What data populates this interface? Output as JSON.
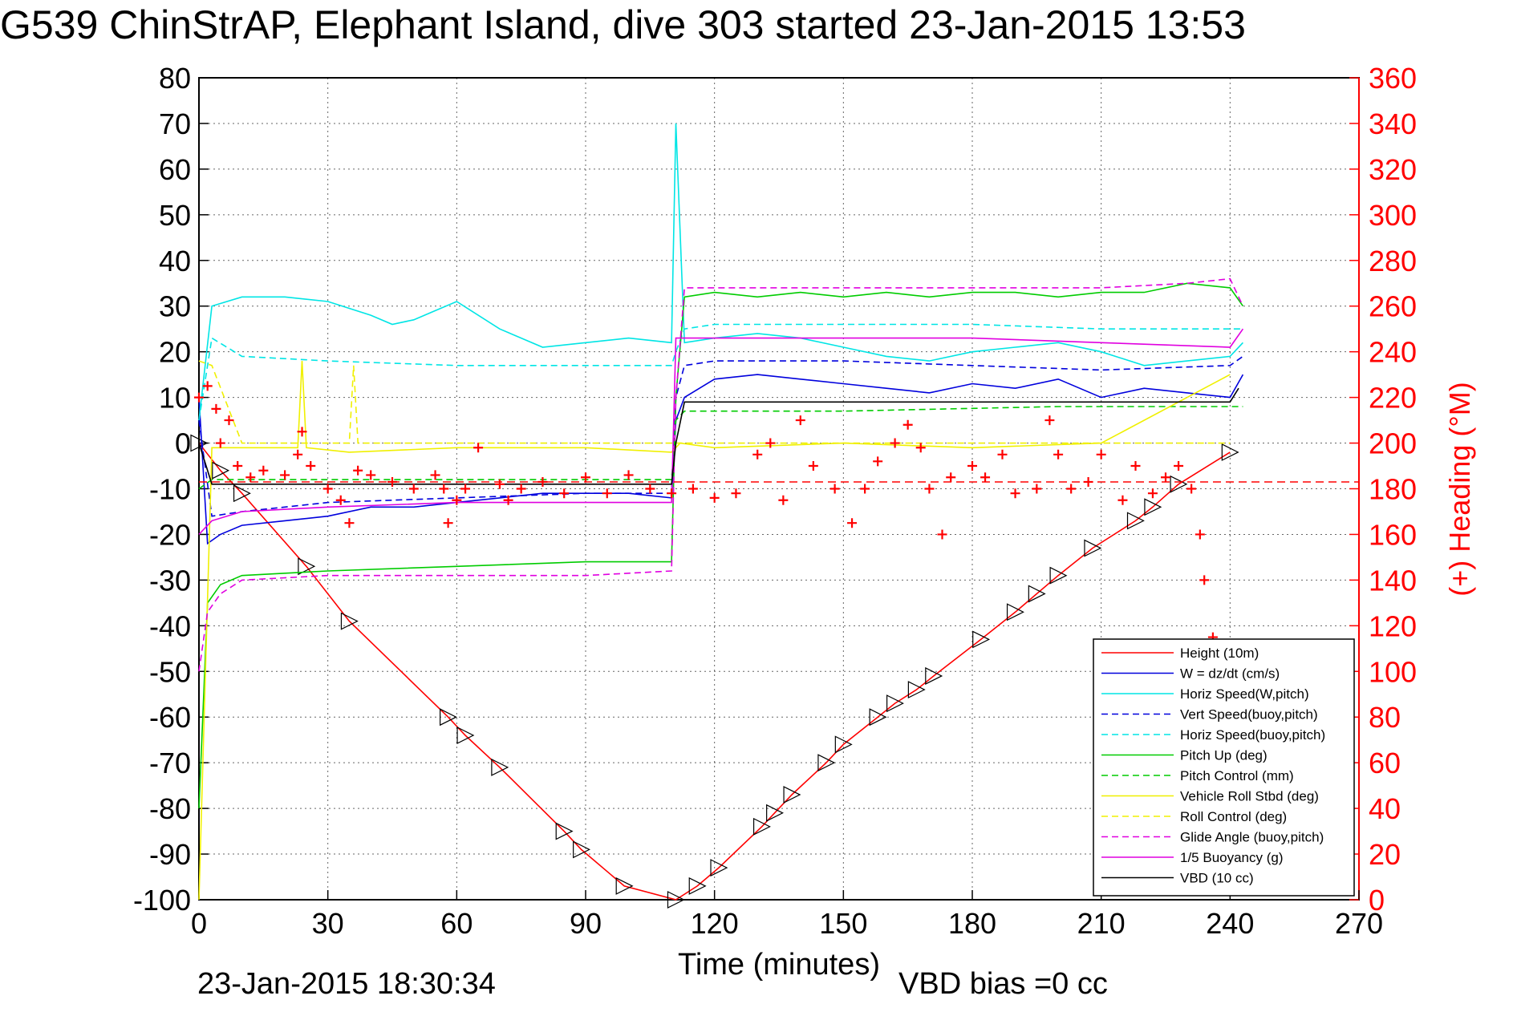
{
  "title": "G539 ChinStrAP, Elephant Island, dive 303 started 23-Jan-2015 13:53",
  "footer_left": "23-Jan-2015 18:30:34",
  "footer_right": "VBD bias =0 cc",
  "chart_data": {
    "type": "line",
    "xlabel": "Time (minutes)",
    "ylabel": "",
    "ylabel_right": "(+) Heading (°M)",
    "xlim": [
      0,
      270
    ],
    "ylim": [
      -100,
      80
    ],
    "ylim_right": [
      0,
      360
    ],
    "xticks": [
      0,
      30,
      60,
      90,
      120,
      150,
      180,
      210,
      240,
      270
    ],
    "yticks": [
      -100,
      -90,
      -80,
      -70,
      -60,
      -50,
      -40,
      -30,
      -20,
      -10,
      0,
      10,
      20,
      30,
      40,
      50,
      60,
      70,
      80
    ],
    "yticks_right": [
      0,
      20,
      40,
      60,
      80,
      100,
      120,
      140,
      160,
      180,
      200,
      220,
      240,
      260,
      280,
      300,
      320,
      340,
      360
    ],
    "grid": true,
    "legend_position": "bottom-right",
    "colors": {
      "right_axis": "#ff0000",
      "red": "#ff0000",
      "blue": "#0000dd",
      "cyan": "#00e5e5",
      "green": "#00cc00",
      "yellow": "#f0f000",
      "magenta": "#e000e0",
      "black": "#000000"
    },
    "series": [
      {
        "name": "Height (10m)",
        "color": "#ff0000",
        "style": "solid",
        "marker": "triangle",
        "x": [
          0,
          5,
          10,
          25,
          35,
          58,
          62,
          70,
          85,
          89,
          99,
          111,
          116,
          121,
          131,
          134,
          138,
          146,
          150,
          158,
          162,
          167,
          171,
          182,
          190,
          195,
          200,
          208,
          218,
          222,
          228,
          240
        ],
        "y": [
          0,
          -6,
          -11,
          -27,
          -39,
          -60,
          -64,
          -71,
          -85,
          -89,
          -97,
          -100,
          -97,
          -93,
          -84,
          -81,
          -77,
          -70,
          -66,
          -60,
          -57,
          -54,
          -51,
          -43,
          -37,
          -33,
          -29,
          -23,
          -17,
          -14,
          -9,
          -2
        ]
      },
      {
        "name": "W = dz/dt (cm/s)",
        "color": "#0000dd",
        "style": "solid",
        "x": [
          0,
          2,
          5,
          10,
          20,
          30,
          40,
          50,
          60,
          70,
          80,
          90,
          100,
          110,
          111,
          113,
          120,
          130,
          140,
          150,
          160,
          170,
          180,
          190,
          200,
          210,
          220,
          230,
          240,
          243
        ],
        "y": [
          10,
          -22,
          -20,
          -18,
          -17,
          -16,
          -14,
          -14,
          -13,
          -12,
          -11,
          -11,
          -11,
          -12,
          5,
          10,
          14,
          15,
          14,
          13,
          12,
          11,
          13,
          12,
          14,
          10,
          12,
          11,
          10,
          15
        ]
      },
      {
        "name": "Horiz Speed(W,pitch)",
        "color": "#00e5e5",
        "style": "solid",
        "x": [
          0,
          3,
          10,
          20,
          30,
          40,
          45,
          50,
          55,
          60,
          70,
          80,
          90,
          100,
          110,
          111,
          113,
          120,
          130,
          140,
          150,
          160,
          170,
          180,
          190,
          200,
          210,
          220,
          230,
          240,
          243
        ],
        "y": [
          5,
          30,
          32,
          32,
          31,
          28,
          26,
          27,
          29,
          31,
          25,
          21,
          22,
          23,
          22,
          70,
          22,
          23,
          24,
          23,
          21,
          19,
          18,
          20,
          21,
          22,
          20,
          17,
          18,
          19,
          22
        ]
      },
      {
        "name": "Vert Speed(buoy,pitch)",
        "color": "#0000dd",
        "style": "dashed",
        "x": [
          0,
          3,
          10,
          30,
          60,
          90,
          110,
          111,
          113,
          120,
          150,
          180,
          210,
          240,
          243
        ],
        "y": [
          5,
          -16,
          -15,
          -13,
          -12,
          -11,
          -11,
          10,
          17,
          18,
          18,
          17,
          16,
          17,
          19
        ]
      },
      {
        "name": "Horiz Speed(buoy,pitch)",
        "color": "#00e5e5",
        "style": "dashed",
        "x": [
          0,
          3,
          10,
          30,
          60,
          90,
          110,
          111,
          113,
          120,
          150,
          180,
          210,
          240,
          243
        ],
        "y": [
          5,
          23,
          19,
          18,
          17,
          17,
          17,
          20,
          25,
          26,
          26,
          26,
          25,
          25,
          25
        ]
      },
      {
        "name": "Pitch Up (deg)",
        "color": "#00cc00",
        "style": "solid",
        "x": [
          0,
          2,
          5,
          10,
          30,
          60,
          90,
          110,
          111,
          113,
          120,
          130,
          140,
          150,
          160,
          170,
          180,
          190,
          200,
          210,
          220,
          230,
          240,
          243
        ],
        "y": [
          -80,
          -35,
          -31,
          -29,
          -28,
          -27,
          -26,
          -26,
          10,
          32,
          33,
          32,
          33,
          32,
          33,
          32,
          33,
          33,
          32,
          33,
          33,
          35,
          34,
          30
        ]
      },
      {
        "name": "Pitch Control (mm)",
        "color": "#00cc00",
        "style": "dashed",
        "x": [
          0,
          3,
          60,
          110,
          111,
          113,
          150,
          200,
          240,
          243
        ],
        "y": [
          -10,
          -8,
          -8,
          -8,
          5,
          7,
          7,
          8,
          8,
          8
        ]
      },
      {
        "name": "Vehicle Roll Stbd (deg)",
        "color": "#f0f000",
        "style": "solid",
        "x": [
          0,
          3,
          10,
          23,
          24,
          25,
          35,
          60,
          90,
          110,
          112,
          120,
          150,
          180,
          210,
          240
        ],
        "y": [
          -100,
          -1,
          -1,
          -1,
          18,
          -1,
          -2,
          -1,
          -1,
          -2,
          0,
          -1,
          0,
          -1,
          0,
          15
        ]
      },
      {
        "name": "Roll Control (deg)",
        "color": "#f0f000",
        "style": "dashed",
        "x": [
          0,
          3,
          10,
          35,
          36,
          37,
          60,
          90,
          110,
          112,
          150,
          180,
          210,
          240
        ],
        "y": [
          18,
          17,
          0,
          0,
          17,
          0,
          0,
          0,
          0,
          0,
          0,
          0,
          0,
          0
        ]
      },
      {
        "name": "Glide Angle (buoy,pitch)",
        "color": "#e000e0",
        "style": "dashed",
        "x": [
          0,
          2,
          5,
          10,
          30,
          60,
          90,
          110,
          111,
          113,
          120,
          150,
          180,
          210,
          230,
          240,
          243
        ],
        "y": [
          -50,
          -37,
          -33,
          -30,
          -29,
          -29,
          -29,
          -28,
          10,
          34,
          34,
          34,
          34,
          34,
          35,
          36,
          30
        ]
      },
      {
        "name": "1/5 Buoyancy (g)",
        "color": "#e000e0",
        "style": "solid",
        "x": [
          0,
          3,
          10,
          30,
          60,
          90,
          110,
          111,
          113,
          150,
          180,
          210,
          240,
          243
        ],
        "y": [
          -20,
          -17,
          -15,
          -14,
          -13,
          -13,
          -13,
          23,
          23,
          23,
          23,
          22,
          21,
          25
        ]
      },
      {
        "name": "VBD (10 cc)",
        "color": "#000000",
        "style": "solid",
        "x": [
          0,
          3,
          110,
          111,
          113,
          240,
          242
        ],
        "y": [
          0,
          -9,
          -9,
          0,
          9,
          9,
          12
        ]
      }
    ],
    "heading": {
      "axis": "right",
      "color": "#ff0000",
      "marker": "plus",
      "target_heading": 183,
      "x": [
        0,
        2,
        4,
        5,
        7,
        9,
        12,
        15,
        20,
        23,
        24,
        26,
        30,
        33,
        35,
        37,
        40,
        45,
        50,
        55,
        57,
        58,
        60,
        62,
        65,
        70,
        72,
        75,
        80,
        85,
        90,
        95,
        100,
        105,
        110,
        115,
        120,
        125,
        130,
        133,
        136,
        140,
        143,
        148,
        152,
        155,
        158,
        162,
        165,
        168,
        170,
        173,
        175,
        180,
        183,
        187,
        190,
        195,
        198,
        200,
        203,
        207,
        210,
        215,
        218,
        222,
        225,
        228,
        231,
        233,
        234,
        236
      ],
      "y": [
        220,
        225,
        215,
        200,
        210,
        190,
        185,
        188,
        186,
        195,
        205,
        190,
        180,
        175,
        165,
        188,
        186,
        183,
        180,
        186,
        180,
        165,
        175,
        180,
        198,
        182,
        175,
        180,
        183,
        178,
        185,
        178,
        186,
        180,
        178,
        180,
        176,
        178,
        195,
        200,
        175,
        210,
        190,
        180,
        165,
        180,
        192,
        200,
        208,
        198,
        180,
        160,
        185,
        190,
        185,
        195,
        178,
        180,
        210,
        195,
        180,
        183,
        195,
        175,
        190,
        178,
        185,
        190,
        180,
        160,
        140,
        115
      ]
    }
  }
}
